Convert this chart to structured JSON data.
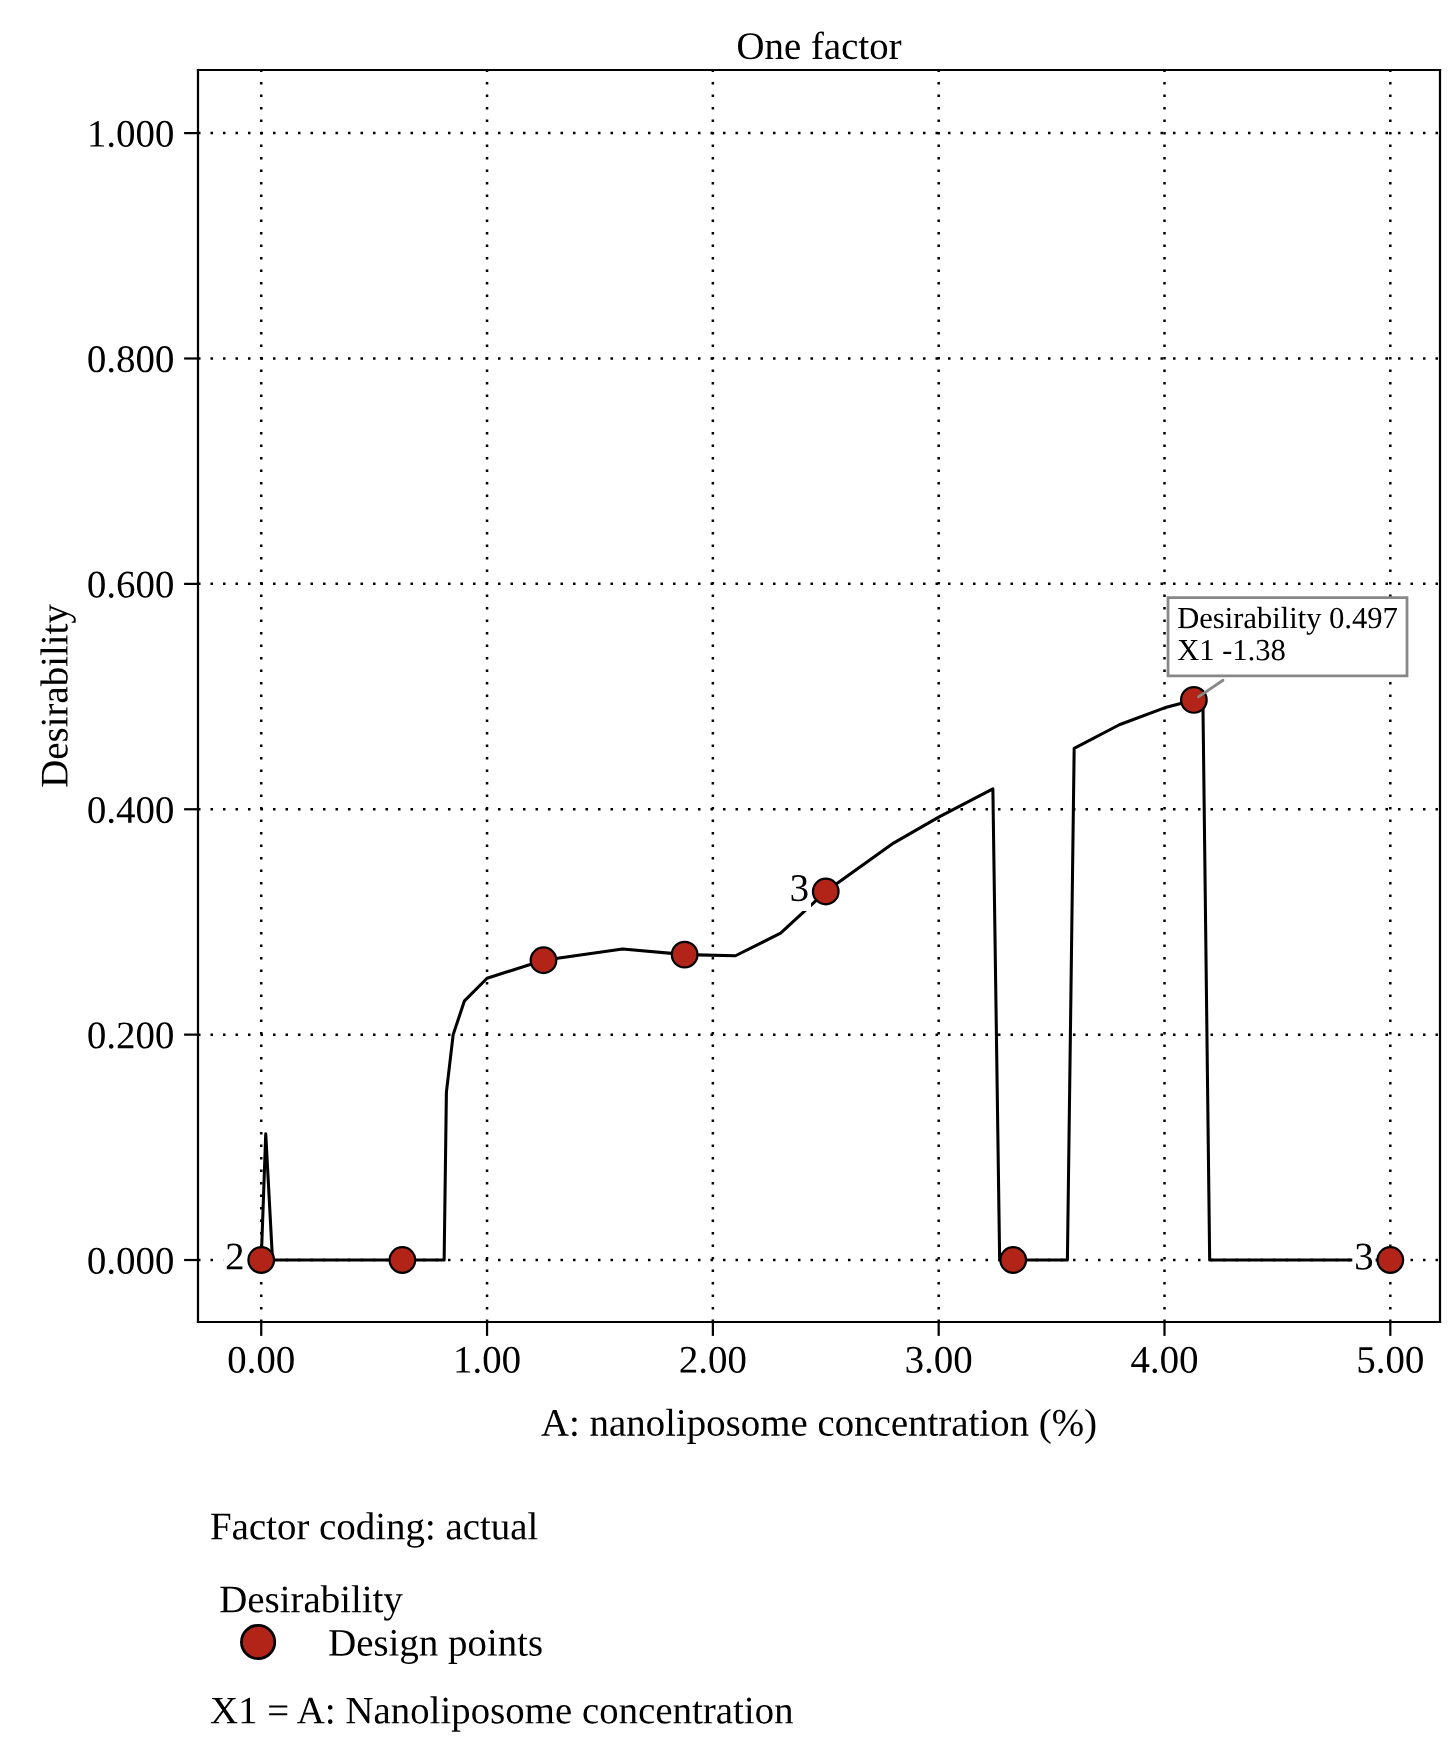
{
  "chart_data": {
    "type": "line",
    "title": "One factor",
    "xlabel": "A: nanoliposome concentration (%)",
    "ylabel": "Desirability",
    "legend_title": "Desirability",
    "xlim": [
      -0.28,
      5.22
    ],
    "ylim": [
      -0.055,
      1.056
    ],
    "xticks": [
      {
        "value": 0,
        "label": "0.00"
      },
      {
        "value": 1,
        "label": "1.00"
      },
      {
        "value": 2,
        "label": "2.00"
      },
      {
        "value": 3,
        "label": "3.00"
      },
      {
        "value": 4,
        "label": "4.00"
      },
      {
        "value": 5,
        "label": "5.00"
      }
    ],
    "yticks": [
      {
        "value": 0,
        "label": "0.000"
      },
      {
        "value": 0.2,
        "label": "0.200"
      },
      {
        "value": 0.4,
        "label": "0.400"
      },
      {
        "value": 0.6,
        "label": "0.600"
      },
      {
        "value": 0.8,
        "label": "0.800"
      },
      {
        "value": 1.0,
        "label": "1.000"
      }
    ],
    "grid": true,
    "legend": "bottom",
    "series": [
      {
        "color": "#000000",
        "marker": "none",
        "line_style": "solid",
        "x": [
          0,
          0.02,
          0.05,
          0.81,
          0.82,
          0.85,
          0.9,
          1.0,
          1.25,
          1.6,
          1.88,
          2.1,
          2.3,
          2.5,
          2.8,
          3.0,
          3.24,
          3.27,
          3.57,
          3.6,
          3.8,
          4.0,
          4.13,
          4.17,
          4.2,
          5.0
        ],
        "values": [
          0,
          0.112,
          0,
          0,
          0.149,
          0.2,
          0.23,
          0.25,
          0.266,
          0.276,
          0.271,
          0.27,
          0.29,
          0.327,
          0.37,
          0.393,
          0.418,
          0,
          0,
          0.454,
          0.475,
          0.49,
          0.497,
          0.497,
          0,
          0
        ]
      },
      {
        "type": "scatter",
        "name": "Design points",
        "color": "#b22418",
        "marker": "circle",
        "x": [
          0,
          0.625,
          1.25,
          1.875,
          2.5,
          3.33,
          4.13,
          5.0
        ],
        "values": [
          0,
          0,
          0.266,
          0.271,
          0.327,
          0,
          0.497,
          0
        ]
      }
    ],
    "annotations": [
      {
        "text": "2",
        "x": 0,
        "y": 0
      },
      {
        "text": "3",
        "x": 2.5,
        "y": 0.327
      },
      {
        "text": "3",
        "x": 5.0,
        "y": 0
      },
      {
        "text": "Desirability 0.497\nX1 -1.38",
        "x": 4.13,
        "y": 0.497
      },
      "Factor coding: actual",
      "X1 = A: Nanoliposome concentration"
    ]
  }
}
